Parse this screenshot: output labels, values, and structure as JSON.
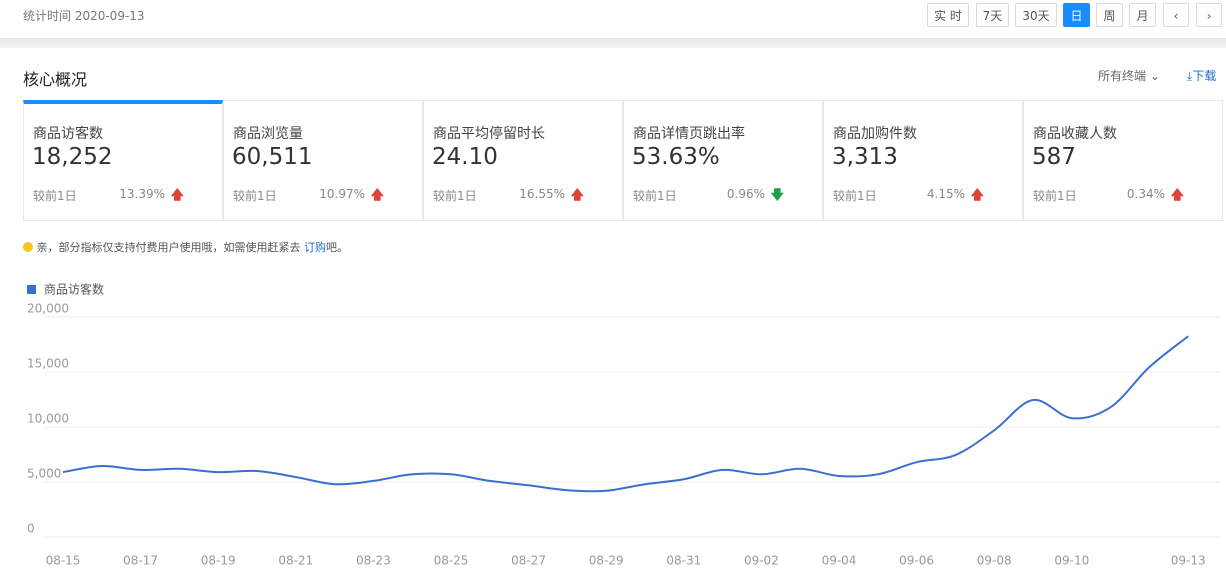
{
  "header": {
    "date_label": "统计时间 2020-09-13",
    "buttons": [
      {
        "label": "实 时",
        "active": false
      },
      {
        "label": "7天",
        "active": false
      },
      {
        "label": "30天",
        "active": false
      },
      {
        "label": "日",
        "active": true
      },
      {
        "label": "周",
        "active": false
      },
      {
        "label": "月",
        "active": false
      }
    ]
  },
  "section": {
    "title": "核心概况",
    "terminal": "所有终端",
    "download": "下载"
  },
  "metrics": [
    {
      "name": "商品访客数",
      "value": "18,252",
      "compare": "较前1日",
      "change": "13.39%",
      "trend": "up"
    },
    {
      "name": "商品浏览量",
      "value": "60,511",
      "compare": "较前1日",
      "change": "10.97%",
      "trend": "up"
    },
    {
      "name": "商品平均停留时长",
      "value": "24.10",
      "compare": "较前1日",
      "change": "16.55%",
      "trend": "up"
    },
    {
      "name": "商品详情页跳出率",
      "value": "53.63%",
      "compare": "较前1日",
      "change": "0.96%",
      "trend": "down"
    },
    {
      "name": "商品加购件数",
      "value": "3,313",
      "compare": "较前1日",
      "change": "4.15%",
      "trend": "up"
    },
    {
      "name": "商品收藏人数",
      "value": "587",
      "compare": "较前1日",
      "change": "0.34%",
      "trend": "up"
    }
  ],
  "notice": {
    "text": "亲，部分指标仅支持付费用户使用哦，如需使用赶紧去 ",
    "link": "订购",
    "suffix": "吧。"
  },
  "chart_data": {
    "type": "line",
    "categories": [
      "08-15",
      null,
      "08-17",
      null,
      "08-19",
      null,
      "08-21",
      null,
      "08-23",
      null,
      "08-25",
      null,
      "08-27",
      null,
      "08-29",
      null,
      "08-31",
      null,
      "09-02",
      null,
      "09-04",
      null,
      "09-06",
      null,
      "09-08",
      null,
      "09-10",
      null,
      null,
      "09-13"
    ],
    "series": [
      {
        "name": "商品访客数",
        "color": "#3a6fd0",
        "values": [
          5900,
          6450,
          6100,
          6200,
          5900,
          6000,
          5450,
          4800,
          5100,
          5700,
          5700,
          5100,
          4700,
          4250,
          4200,
          4800,
          5250,
          6100,
          5700,
          6200,
          5550,
          5700,
          6800,
          7450,
          9700,
          12450,
          10800,
          11800,
          15450,
          18252
        ]
      }
    ],
    "ylim": [
      0,
      20000
    ],
    "yticks": [
      0,
      {
        "value": 5000,
        "label": "5,000"
      },
      {
        "value": 10000,
        "label": "10,000"
      },
      {
        "value": 15000,
        "label": "15,000"
      },
      {
        "value": 20000,
        "label": "20,000"
      }
    ],
    "grid": true
  }
}
